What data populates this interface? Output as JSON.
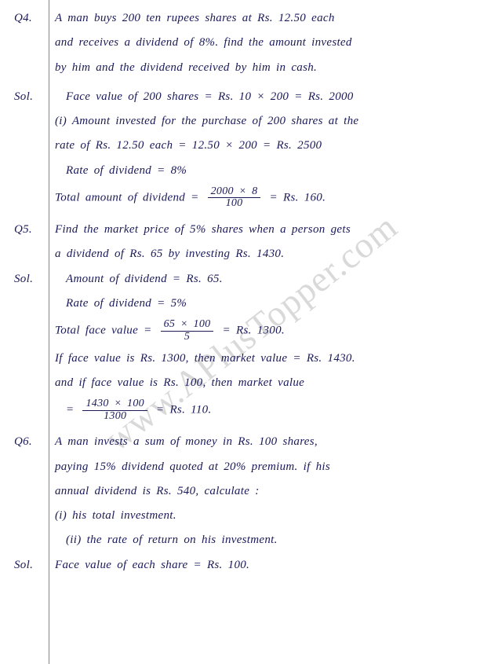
{
  "watermark": "www.APlusTopper.com",
  "q4": {
    "label": "Q4.",
    "l1": "A man buys 200 ten rupees shares at Rs. 12.50 each",
    "l2": "and receives a dividend of 8%. find the amount invested",
    "l3": "by him and the dividend received by him in cash."
  },
  "s4": {
    "label": "Sol.",
    "l1": "Face value of 200 shares = Rs. 10 × 200 = Rs. 2000",
    "l2": "(i) Amount invested for the purchase of 200 shares at the",
    "l3": "rate of Rs. 12.50 each = 12.50 × 200 = Rs. 2500",
    "l4": "Rate of dividend = 8%",
    "l5a": "Total amount of dividend = ",
    "l5num": "2000 × 8",
    "l5den": "100",
    "l5b": " = Rs. 160."
  },
  "q5": {
    "label": "Q5.",
    "l1": "Find the market price of 5% shares when a person gets",
    "l2": "a dividend of Rs. 65 by investing Rs. 1430."
  },
  "s5": {
    "label": "Sol.",
    "l1": "Amount of dividend = Rs. 65.",
    "l2": "Rate of dividend = 5%",
    "l3a": "Total face value = ",
    "l3num": "65 × 100",
    "l3den": "5",
    "l3b": " = Rs. 1300.",
    "l4": "If face value is Rs. 1300, then market value = Rs. 1430.",
    "l5": "and if face value is Rs. 100, then market value",
    "l6a": "= ",
    "l6num": "1430 × 100",
    "l6den": "1300",
    "l6b": " = Rs. 110."
  },
  "q6": {
    "label": "Q6.",
    "l1": "A man invests a sum of money in Rs. 100 shares,",
    "l2": "paying 15% dividend quoted at 20% premium. if his",
    "l3": "annual dividend is Rs. 540, calculate :",
    "l4": "(i) his total investment.",
    "l5": "(ii) the rate of return on his investment."
  },
  "s6": {
    "label": "Sol.",
    "l1": "Face value of each share = Rs. 100."
  }
}
